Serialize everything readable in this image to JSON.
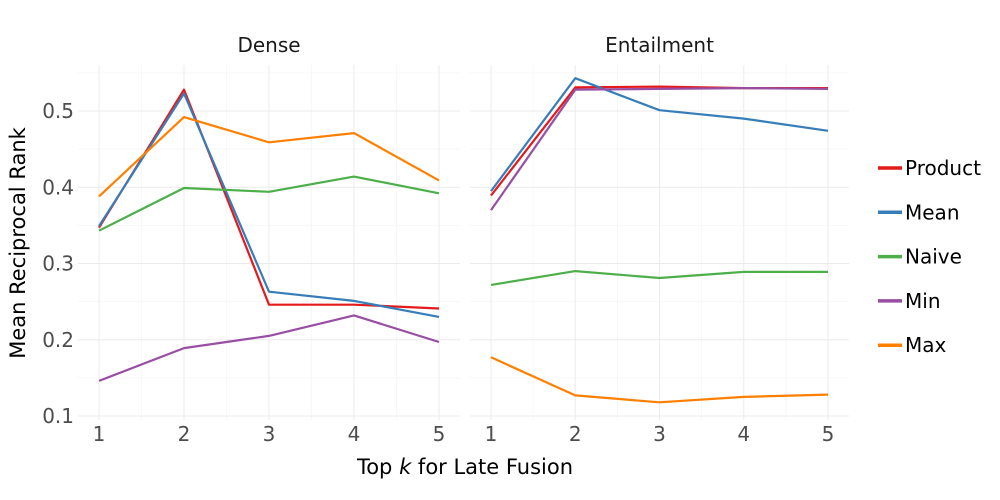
{
  "chart_data": {
    "type": "line",
    "xlabel": "Top k for Late Fusion",
    "xlabel_parts": [
      "Top ",
      "k",
      " for Late Fusion"
    ],
    "ylabel": "Mean Reciprocal Rank",
    "x": [
      1,
      2,
      3,
      4,
      5
    ],
    "xticks": [
      "1",
      "2",
      "3",
      "4",
      "5"
    ],
    "yticks": [
      "0.1",
      "0.2",
      "0.3",
      "0.4",
      "0.5"
    ],
    "ylim": [
      0.1,
      0.56
    ],
    "grid": true,
    "legend_position": "right",
    "legend": [
      {
        "name": "Product",
        "color": "#e41a1c"
      },
      {
        "name": "Mean",
        "color": "#377eb8"
      },
      {
        "name": "Naive",
        "color": "#4daf4a"
      },
      {
        "name": "Min",
        "color": "#984ea3"
      },
      {
        "name": "Max",
        "color": "#ff7f00"
      }
    ],
    "panels": [
      {
        "title": "Dense",
        "series": [
          {
            "name": "Product",
            "values": [
              0.347,
              0.528,
              0.246,
              0.246,
              0.241
            ]
          },
          {
            "name": "Mean",
            "values": [
              0.349,
              0.523,
              0.263,
              0.251,
              0.23
            ]
          },
          {
            "name": "Naive",
            "values": [
              0.343,
              0.399,
              0.394,
              0.414,
              0.392
            ]
          },
          {
            "name": "Min",
            "values": [
              0.146,
              0.189,
              0.205,
              0.232,
              0.197
            ]
          },
          {
            "name": "Max",
            "values": [
              0.388,
              0.492,
              0.459,
              0.471,
              0.409
            ]
          }
        ]
      },
      {
        "title": "Entailment",
        "series": [
          {
            "name": "Product",
            "values": [
              0.389,
              0.531,
              0.532,
              0.53,
              0.53
            ]
          },
          {
            "name": "Mean",
            "values": [
              0.395,
              0.543,
              0.501,
              0.49,
              0.474
            ]
          },
          {
            "name": "Naive",
            "values": [
              0.272,
              0.29,
              0.281,
              0.289,
              0.289
            ]
          },
          {
            "name": "Min",
            "values": [
              0.37,
              0.528,
              0.529,
              0.53,
              0.529
            ]
          },
          {
            "name": "Max",
            "values": [
              0.177,
              0.127,
              0.118,
              0.125,
              0.128
            ]
          }
        ]
      }
    ]
  }
}
